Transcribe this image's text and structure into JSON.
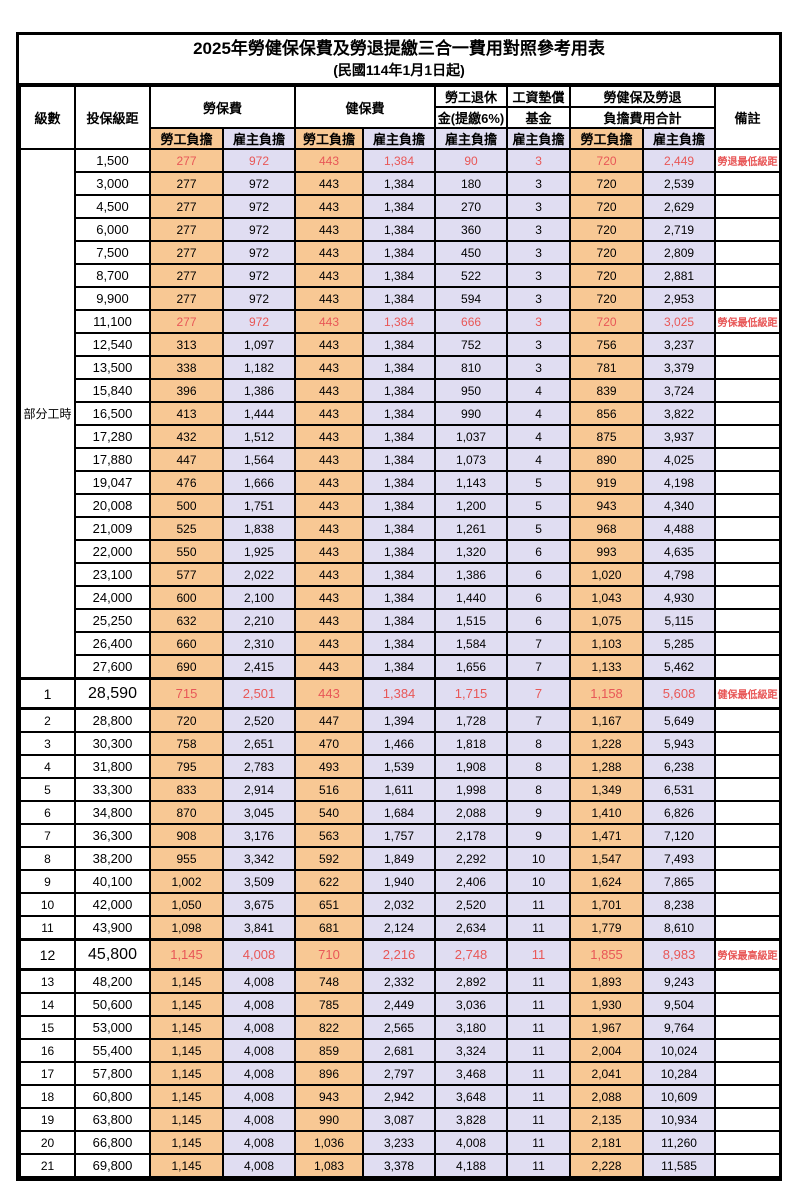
{
  "title": "2025年勞健保保費及勞退提繳三合一費用對照參考用表",
  "subtitle": "(民國114年1月1日起)",
  "colors": {
    "employee_bg": "#f8c894",
    "employer_bg": "#e0ddf2",
    "highlight_red": "#e85757"
  },
  "header": {
    "level": "級數",
    "bracket": "投保級距",
    "labor_insurance": "勞保費",
    "health_insurance": "健保費",
    "pension_line1": "勞工退休",
    "pension_line2": "金(提繳6%)",
    "wage_fund_line1": "工資墊償",
    "wage_fund_line2": "基金",
    "total_line1": "勞健保及勞退",
    "total_line2": "負擔費用合計",
    "remark": "備註",
    "employee": "勞工負擔",
    "employer": "雇主負擔"
  },
  "part_time_label": "部分工時",
  "part_time_rowspan": 23,
  "rows": [
    {
      "lv": "",
      "bk": "1,500",
      "a": "277",
      "b": "972",
      "c": "443",
      "d": "1,384",
      "e": "90",
      "f": "3",
      "g": "720",
      "h": "2,449",
      "rm": "勞退最低級距",
      "red": true,
      "em": false
    },
    {
      "lv": "",
      "bk": "3,000",
      "a": "277",
      "b": "972",
      "c": "443",
      "d": "1,384",
      "e": "180",
      "f": "3",
      "g": "720",
      "h": "2,539",
      "rm": "",
      "red": false,
      "em": false
    },
    {
      "lv": "",
      "bk": "4,500",
      "a": "277",
      "b": "972",
      "c": "443",
      "d": "1,384",
      "e": "270",
      "f": "3",
      "g": "720",
      "h": "2,629",
      "rm": "",
      "red": false,
      "em": false
    },
    {
      "lv": "",
      "bk": "6,000",
      "a": "277",
      "b": "972",
      "c": "443",
      "d": "1,384",
      "e": "360",
      "f": "3",
      "g": "720",
      "h": "2,719",
      "rm": "",
      "red": false,
      "em": false
    },
    {
      "lv": "",
      "bk": "7,500",
      "a": "277",
      "b": "972",
      "c": "443",
      "d": "1,384",
      "e": "450",
      "f": "3",
      "g": "720",
      "h": "2,809",
      "rm": "",
      "red": false,
      "em": false
    },
    {
      "lv": "",
      "bk": "8,700",
      "a": "277",
      "b": "972",
      "c": "443",
      "d": "1,384",
      "e": "522",
      "f": "3",
      "g": "720",
      "h": "2,881",
      "rm": "",
      "red": false,
      "em": false
    },
    {
      "lv": "",
      "bk": "9,900",
      "a": "277",
      "b": "972",
      "c": "443",
      "d": "1,384",
      "e": "594",
      "f": "3",
      "g": "720",
      "h": "2,953",
      "rm": "",
      "red": false,
      "em": false
    },
    {
      "lv": "",
      "bk": "11,100",
      "a": "277",
      "b": "972",
      "c": "443",
      "d": "1,384",
      "e": "666",
      "f": "3",
      "g": "720",
      "h": "3,025",
      "rm": "勞保最低級距",
      "red": true,
      "em": false
    },
    {
      "lv": "",
      "bk": "12,540",
      "a": "313",
      "b": "1,097",
      "c": "443",
      "d": "1,384",
      "e": "752",
      "f": "3",
      "g": "756",
      "h": "3,237",
      "rm": "",
      "red": false,
      "em": false
    },
    {
      "lv": "",
      "bk": "13,500",
      "a": "338",
      "b": "1,182",
      "c": "443",
      "d": "1,384",
      "e": "810",
      "f": "3",
      "g": "781",
      "h": "3,379",
      "rm": "",
      "red": false,
      "em": false
    },
    {
      "lv": "",
      "bk": "15,840",
      "a": "396",
      "b": "1,386",
      "c": "443",
      "d": "1,384",
      "e": "950",
      "f": "4",
      "g": "839",
      "h": "3,724",
      "rm": "",
      "red": false,
      "em": false
    },
    {
      "lv": "",
      "bk": "16,500",
      "a": "413",
      "b": "1,444",
      "c": "443",
      "d": "1,384",
      "e": "990",
      "f": "4",
      "g": "856",
      "h": "3,822",
      "rm": "",
      "red": false,
      "em": false
    },
    {
      "lv": "",
      "bk": "17,280",
      "a": "432",
      "b": "1,512",
      "c": "443",
      "d": "1,384",
      "e": "1,037",
      "f": "4",
      "g": "875",
      "h": "3,937",
      "rm": "",
      "red": false,
      "em": false
    },
    {
      "lv": "",
      "bk": "17,880",
      "a": "447",
      "b": "1,564",
      "c": "443",
      "d": "1,384",
      "e": "1,073",
      "f": "4",
      "g": "890",
      "h": "4,025",
      "rm": "",
      "red": false,
      "em": false
    },
    {
      "lv": "",
      "bk": "19,047",
      "a": "476",
      "b": "1,666",
      "c": "443",
      "d": "1,384",
      "e": "1,143",
      "f": "5",
      "g": "919",
      "h": "4,198",
      "rm": "",
      "red": false,
      "em": false
    },
    {
      "lv": "",
      "bk": "20,008",
      "a": "500",
      "b": "1,751",
      "c": "443",
      "d": "1,384",
      "e": "1,200",
      "f": "5",
      "g": "943",
      "h": "4,340",
      "rm": "",
      "red": false,
      "em": false
    },
    {
      "lv": "",
      "bk": "21,009",
      "a": "525",
      "b": "1,838",
      "c": "443",
      "d": "1,384",
      "e": "1,261",
      "f": "5",
      "g": "968",
      "h": "4,488",
      "rm": "",
      "red": false,
      "em": false
    },
    {
      "lv": "",
      "bk": "22,000",
      "a": "550",
      "b": "1,925",
      "c": "443",
      "d": "1,384",
      "e": "1,320",
      "f": "6",
      "g": "993",
      "h": "4,635",
      "rm": "",
      "red": false,
      "em": false
    },
    {
      "lv": "",
      "bk": "23,100",
      "a": "577",
      "b": "2,022",
      "c": "443",
      "d": "1,384",
      "e": "1,386",
      "f": "6",
      "g": "1,020",
      "h": "4,798",
      "rm": "",
      "red": false,
      "em": false
    },
    {
      "lv": "",
      "bk": "24,000",
      "a": "600",
      "b": "2,100",
      "c": "443",
      "d": "1,384",
      "e": "1,440",
      "f": "6",
      "g": "1,043",
      "h": "4,930",
      "rm": "",
      "red": false,
      "em": false
    },
    {
      "lv": "",
      "bk": "25,250",
      "a": "632",
      "b": "2,210",
      "c": "443",
      "d": "1,384",
      "e": "1,515",
      "f": "6",
      "g": "1,075",
      "h": "5,115",
      "rm": "",
      "red": false,
      "em": false
    },
    {
      "lv": "",
      "bk": "26,400",
      "a": "660",
      "b": "2,310",
      "c": "443",
      "d": "1,384",
      "e": "1,584",
      "f": "7",
      "g": "1,103",
      "h": "5,285",
      "rm": "",
      "red": false,
      "em": false
    },
    {
      "lv": "",
      "bk": "27,600",
      "a": "690",
      "b": "2,415",
      "c": "443",
      "d": "1,384",
      "e": "1,656",
      "f": "7",
      "g": "1,133",
      "h": "5,462",
      "rm": "",
      "red": false,
      "em": false
    },
    {
      "lv": "1",
      "bk": "28,590",
      "a": "715",
      "b": "2,501",
      "c": "443",
      "d": "1,384",
      "e": "1,715",
      "f": "7",
      "g": "1,158",
      "h": "5,608",
      "rm": "健保最低級距",
      "red": true,
      "em": true
    },
    {
      "lv": "2",
      "bk": "28,800",
      "a": "720",
      "b": "2,520",
      "c": "447",
      "d": "1,394",
      "e": "1,728",
      "f": "7",
      "g": "1,167",
      "h": "5,649",
      "rm": "",
      "red": false,
      "em": false
    },
    {
      "lv": "3",
      "bk": "30,300",
      "a": "758",
      "b": "2,651",
      "c": "470",
      "d": "1,466",
      "e": "1,818",
      "f": "8",
      "g": "1,228",
      "h": "5,943",
      "rm": "",
      "red": false,
      "em": false
    },
    {
      "lv": "4",
      "bk": "31,800",
      "a": "795",
      "b": "2,783",
      "c": "493",
      "d": "1,539",
      "e": "1,908",
      "f": "8",
      "g": "1,288",
      "h": "6,238",
      "rm": "",
      "red": false,
      "em": false
    },
    {
      "lv": "5",
      "bk": "33,300",
      "a": "833",
      "b": "2,914",
      "c": "516",
      "d": "1,611",
      "e": "1,998",
      "f": "8",
      "g": "1,349",
      "h": "6,531",
      "rm": "",
      "red": false,
      "em": false
    },
    {
      "lv": "6",
      "bk": "34,800",
      "a": "870",
      "b": "3,045",
      "c": "540",
      "d": "1,684",
      "e": "2,088",
      "f": "9",
      "g": "1,410",
      "h": "6,826",
      "rm": "",
      "red": false,
      "em": false
    },
    {
      "lv": "7",
      "bk": "36,300",
      "a": "908",
      "b": "3,176",
      "c": "563",
      "d": "1,757",
      "e": "2,178",
      "f": "9",
      "g": "1,471",
      "h": "7,120",
      "rm": "",
      "red": false,
      "em": false
    },
    {
      "lv": "8",
      "bk": "38,200",
      "a": "955",
      "b": "3,342",
      "c": "592",
      "d": "1,849",
      "e": "2,292",
      "f": "10",
      "g": "1,547",
      "h": "7,493",
      "rm": "",
      "red": false,
      "em": false
    },
    {
      "lv": "9",
      "bk": "40,100",
      "a": "1,002",
      "b": "3,509",
      "c": "622",
      "d": "1,940",
      "e": "2,406",
      "f": "10",
      "g": "1,624",
      "h": "7,865",
      "rm": "",
      "red": false,
      "em": false
    },
    {
      "lv": "10",
      "bk": "42,000",
      "a": "1,050",
      "b": "3,675",
      "c": "651",
      "d": "2,032",
      "e": "2,520",
      "f": "11",
      "g": "1,701",
      "h": "8,238",
      "rm": "",
      "red": false,
      "em": false
    },
    {
      "lv": "11",
      "bk": "43,900",
      "a": "1,098",
      "b": "3,841",
      "c": "681",
      "d": "2,124",
      "e": "2,634",
      "f": "11",
      "g": "1,779",
      "h": "8,610",
      "rm": "",
      "red": false,
      "em": false
    },
    {
      "lv": "12",
      "bk": "45,800",
      "a": "1,145",
      "b": "4,008",
      "c": "710",
      "d": "2,216",
      "e": "2,748",
      "f": "11",
      "g": "1,855",
      "h": "8,983",
      "rm": "勞保最高級距",
      "red": true,
      "em": true
    },
    {
      "lv": "13",
      "bk": "48,200",
      "a": "1,145",
      "b": "4,008",
      "c": "748",
      "d": "2,332",
      "e": "2,892",
      "f": "11",
      "g": "1,893",
      "h": "9,243",
      "rm": "",
      "red": false,
      "em": false
    },
    {
      "lv": "14",
      "bk": "50,600",
      "a": "1,145",
      "b": "4,008",
      "c": "785",
      "d": "2,449",
      "e": "3,036",
      "f": "11",
      "g": "1,930",
      "h": "9,504",
      "rm": "",
      "red": false,
      "em": false
    },
    {
      "lv": "15",
      "bk": "53,000",
      "a": "1,145",
      "b": "4,008",
      "c": "822",
      "d": "2,565",
      "e": "3,180",
      "f": "11",
      "g": "1,967",
      "h": "9,764",
      "rm": "",
      "red": false,
      "em": false
    },
    {
      "lv": "16",
      "bk": "55,400",
      "a": "1,145",
      "b": "4,008",
      "c": "859",
      "d": "2,681",
      "e": "3,324",
      "f": "11",
      "g": "2,004",
      "h": "10,024",
      "rm": "",
      "red": false,
      "em": false
    },
    {
      "lv": "17",
      "bk": "57,800",
      "a": "1,145",
      "b": "4,008",
      "c": "896",
      "d": "2,797",
      "e": "3,468",
      "f": "11",
      "g": "2,041",
      "h": "10,284",
      "rm": "",
      "red": false,
      "em": false
    },
    {
      "lv": "18",
      "bk": "60,800",
      "a": "1,145",
      "b": "4,008",
      "c": "943",
      "d": "2,942",
      "e": "3,648",
      "f": "11",
      "g": "2,088",
      "h": "10,609",
      "rm": "",
      "red": false,
      "em": false
    },
    {
      "lv": "19",
      "bk": "63,800",
      "a": "1,145",
      "b": "4,008",
      "c": "990",
      "d": "3,087",
      "e": "3,828",
      "f": "11",
      "g": "2,135",
      "h": "10,934",
      "rm": "",
      "red": false,
      "em": false
    },
    {
      "lv": "20",
      "bk": "66,800",
      "a": "1,145",
      "b": "4,008",
      "c": "1,036",
      "d": "3,233",
      "e": "4,008",
      "f": "11",
      "g": "2,181",
      "h": "11,260",
      "rm": "",
      "red": false,
      "em": false
    },
    {
      "lv": "21",
      "bk": "69,800",
      "a": "1,145",
      "b": "4,008",
      "c": "1,083",
      "d": "3,378",
      "e": "4,188",
      "f": "11",
      "g": "2,228",
      "h": "11,585",
      "rm": "",
      "red": false,
      "em": false
    }
  ]
}
